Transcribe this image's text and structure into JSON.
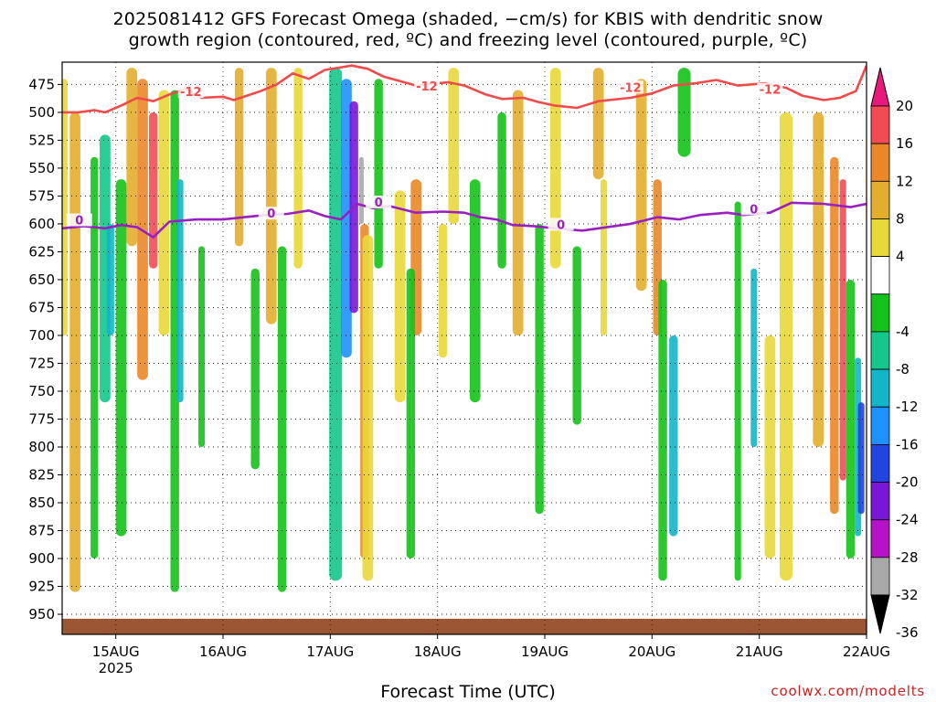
{
  "title_line1": "2025081412 GFS Forecast Omega (shaded, −cm/s) for KBIS with dendritic snow",
  "title_line2": "growth region (contoured, red, ºC) and freezing level (contoured, purple, ºC)",
  "credit": "coolwx.com/modelts",
  "chart_data": {
    "type": "heatmap",
    "x_axis": {
      "title": "Forecast Time (UTC)",
      "ticks": [
        "15AUG",
        "16AUG",
        "17AUG",
        "18AUG",
        "19AUG",
        "20AUG",
        "21AUG",
        "22AUG"
      ],
      "tick_day_offsets": [
        0.5,
        1.5,
        2.5,
        3.5,
        4.5,
        5.5,
        6.5,
        7.5
      ],
      "year_label": "2025",
      "range_days": [
        0,
        7.5
      ]
    },
    "y_axis": {
      "units": "hPa",
      "ticks": [
        475,
        500,
        525,
        550,
        575,
        600,
        625,
        650,
        675,
        700,
        725,
        750,
        775,
        800,
        825,
        850,
        875,
        900,
        925,
        950
      ],
      "range": [
        455,
        968
      ],
      "grid": "dotted"
    },
    "colorbar": {
      "labels": [
        "20",
        "16",
        "12",
        "8",
        "4",
        "-4",
        "-8",
        "-12",
        "-16",
        "-20",
        "-24",
        "-28",
        "-32",
        "-36"
      ],
      "bins": [
        {
          "range": [
            16,
            20
          ],
          "color": "#f24b55"
        },
        {
          "range": [
            12,
            16
          ],
          "color": "#ea8728"
        },
        {
          "range": [
            8,
            12
          ],
          "color": "#e3ae2e"
        },
        {
          "range": [
            4,
            8
          ],
          "color": "#e8d83a"
        },
        {
          "range": [
            -4,
            4
          ],
          "color": "#ffffff"
        },
        {
          "range": [
            -8,
            -4
          ],
          "color": "#14c21a"
        },
        {
          "range": [
            -12,
            -8
          ],
          "color": "#15c78c"
        },
        {
          "range": [
            -16,
            -12
          ],
          "color": "#12b6c8"
        },
        {
          "range": [
            -20,
            -16
          ],
          "color": "#1e90ff"
        },
        {
          "range": [
            -24,
            -20
          ],
          "color": "#2244e0"
        },
        {
          "range": [
            -28,
            -24
          ],
          "color": "#7a16d9"
        },
        {
          "range": [
            -32,
            -28
          ],
          "color": "#b512c8"
        },
        {
          "range": [
            -36,
            -32
          ],
          "color": "#a8a8a8"
        }
      ],
      "over_color": "#e8197a",
      "under_color": "#000000"
    },
    "contours": [
      {
        "label": "-12",
        "color": "#f04a4a",
        "points": [
          [
            0,
            500
          ],
          [
            0.15,
            500
          ],
          [
            0.3,
            498
          ],
          [
            0.4,
            500
          ],
          [
            0.55,
            494
          ],
          [
            0.7,
            487
          ],
          [
            0.85,
            490
          ],
          [
            1.0,
            484
          ],
          [
            1.15,
            479
          ],
          [
            1.3,
            487
          ],
          [
            1.5,
            486
          ],
          [
            1.6,
            489
          ],
          [
            1.85,
            481
          ],
          [
            2.0,
            475
          ],
          [
            2.15,
            465
          ],
          [
            2.3,
            470
          ],
          [
            2.45,
            462
          ],
          [
            2.7,
            458
          ],
          [
            2.85,
            461
          ],
          [
            3.0,
            468
          ],
          [
            3.3,
            476
          ],
          [
            3.6,
            473
          ],
          [
            3.75,
            476
          ],
          [
            3.95,
            484
          ],
          [
            4.1,
            488
          ],
          [
            4.3,
            487
          ],
          [
            4.45,
            491
          ],
          [
            4.6,
            494
          ],
          [
            4.8,
            496
          ],
          [
            5.0,
            490
          ],
          [
            5.3,
            487
          ],
          [
            5.5,
            483
          ],
          [
            5.7,
            476
          ],
          [
            5.9,
            474
          ],
          [
            6.1,
            471
          ],
          [
            6.3,
            476
          ],
          [
            6.55,
            474
          ],
          [
            6.75,
            478
          ],
          [
            6.9,
            485
          ],
          [
            7.1,
            489
          ],
          [
            7.25,
            487
          ],
          [
            7.4,
            481
          ],
          [
            7.5,
            458
          ]
        ],
        "inline_labels": [
          [
            1.2,
            483
          ],
          [
            3.4,
            478
          ],
          [
            5.3,
            479
          ],
          [
            6.6,
            481
          ]
        ]
      },
      {
        "label": "0",
        "color": "#9a1fc0",
        "points": [
          [
            0,
            604
          ],
          [
            0.2,
            602
          ],
          [
            0.4,
            604
          ],
          [
            0.55,
            601
          ],
          [
            0.7,
            603
          ],
          [
            0.85,
            612
          ],
          [
            1.0,
            598
          ],
          [
            1.25,
            596
          ],
          [
            1.5,
            596
          ],
          [
            1.7,
            594
          ],
          [
            1.9,
            592
          ],
          [
            2.1,
            591
          ],
          [
            2.3,
            588
          ],
          [
            2.45,
            593
          ],
          [
            2.6,
            596
          ],
          [
            2.75,
            582
          ],
          [
            2.9,
            586
          ],
          [
            3.05,
            584
          ],
          [
            3.3,
            590
          ],
          [
            3.55,
            589
          ],
          [
            3.75,
            590
          ],
          [
            3.9,
            594
          ],
          [
            4.05,
            596
          ],
          [
            4.2,
            601
          ],
          [
            4.4,
            602
          ],
          [
            4.6,
            604
          ],
          [
            4.85,
            606
          ],
          [
            5.0,
            604
          ],
          [
            5.3,
            600
          ],
          [
            5.55,
            594
          ],
          [
            5.75,
            596
          ],
          [
            5.95,
            592
          ],
          [
            6.2,
            590
          ],
          [
            6.35,
            592
          ],
          [
            6.6,
            590
          ],
          [
            6.8,
            581
          ],
          [
            7.1,
            582
          ],
          [
            7.35,
            585
          ],
          [
            7.5,
            582
          ]
        ],
        "inline_labels": [
          [
            0.16,
            598
          ],
          [
            1.95,
            592
          ],
          [
            2.95,
            582
          ],
          [
            4.65,
            602
          ],
          [
            6.45,
            588
          ]
        ]
      }
    ],
    "shaded_regions": [
      {
        "name": "ground",
        "color": "#9b5734",
        "note": "terrain below surface near 955 hPa"
      }
    ]
  }
}
